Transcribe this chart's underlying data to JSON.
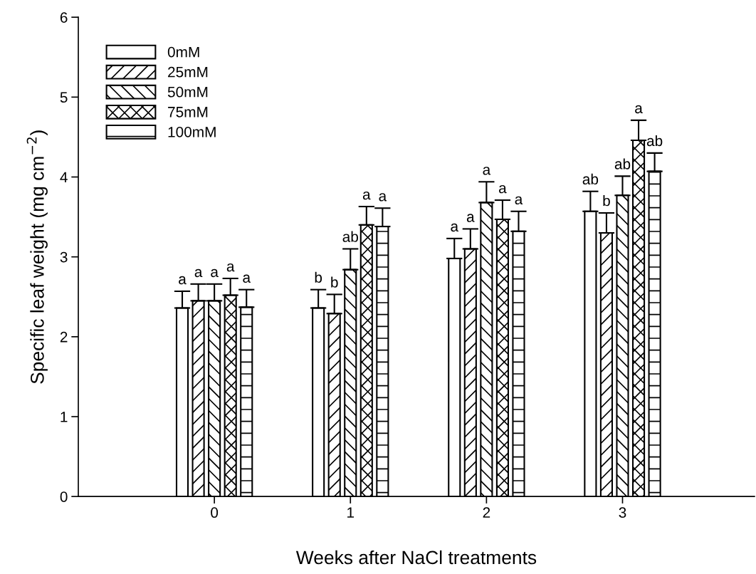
{
  "chart_data": {
    "type": "bar",
    "xlabel": "Weeks after NaCl treatments",
    "ylabel": "Specific leaf weight (mg cm$^{−2}$)",
    "categories": [
      "0",
      "1",
      "2",
      "3"
    ],
    "series": [
      {
        "name": "0mM",
        "color": "#ffffff",
        "values": [
          2.36,
          2.36,
          2.98,
          3.57
        ],
        "errors": [
          [
            2.36,
            2.57
          ],
          [
            2.36,
            2.59
          ],
          [
            2.98,
            3.23
          ],
          [
            3.57,
            3.82
          ]
        ],
        "value_labels": [
          "a",
          "b",
          "a",
          "ab"
        ]
      },
      {
        "name": "25mM",
        "color": "#ffffff",
        "values": [
          2.45,
          2.29,
          3.1,
          3.3
        ],
        "errors": [
          [
            2.45,
            2.66
          ],
          [
            2.29,
            2.53
          ],
          [
            3.1,
            3.35
          ],
          [
            3.3,
            3.55
          ]
        ],
        "value_labels": [
          "a",
          "b",
          "a",
          "b"
        ]
      },
      {
        "name": "50mM",
        "color": "#ffffff",
        "values": [
          2.45,
          2.84,
          3.68,
          3.77
        ],
        "errors": [
          [
            2.45,
            2.66
          ],
          [
            2.84,
            3.1
          ],
          [
            3.68,
            3.94
          ],
          [
            3.77,
            4.01
          ]
        ],
        "value_labels": [
          "a",
          "ab",
          "a",
          "ab"
        ]
      },
      {
        "name": "75mM",
        "color": "#ffffff",
        "values": [
          2.52,
          3.4,
          3.47,
          4.46
        ],
        "errors": [
          [
            2.52,
            2.73
          ],
          [
            3.4,
            3.63
          ],
          [
            3.47,
            3.71
          ],
          [
            4.46,
            4.71
          ]
        ],
        "value_labels": [
          "a",
          "a",
          "a",
          "a"
        ]
      },
      {
        "name": "100mM",
        "color": "#ffffff",
        "values": [
          2.37,
          3.38,
          3.32,
          4.07
        ],
        "errors": [
          [
            2.37,
            2.59
          ],
          [
            3.38,
            3.61
          ],
          [
            3.32,
            3.57
          ],
          [
            4.07,
            4.3
          ]
        ],
        "value_labels": [
          "a",
          "a",
          "a",
          "ab"
        ]
      }
    ],
    "ylim": [
      0,
      6
    ],
    "yticks": [
      0,
      1,
      2,
      3,
      4,
      5,
      6
    ],
    "grid": false,
    "legend": "top left"
  }
}
